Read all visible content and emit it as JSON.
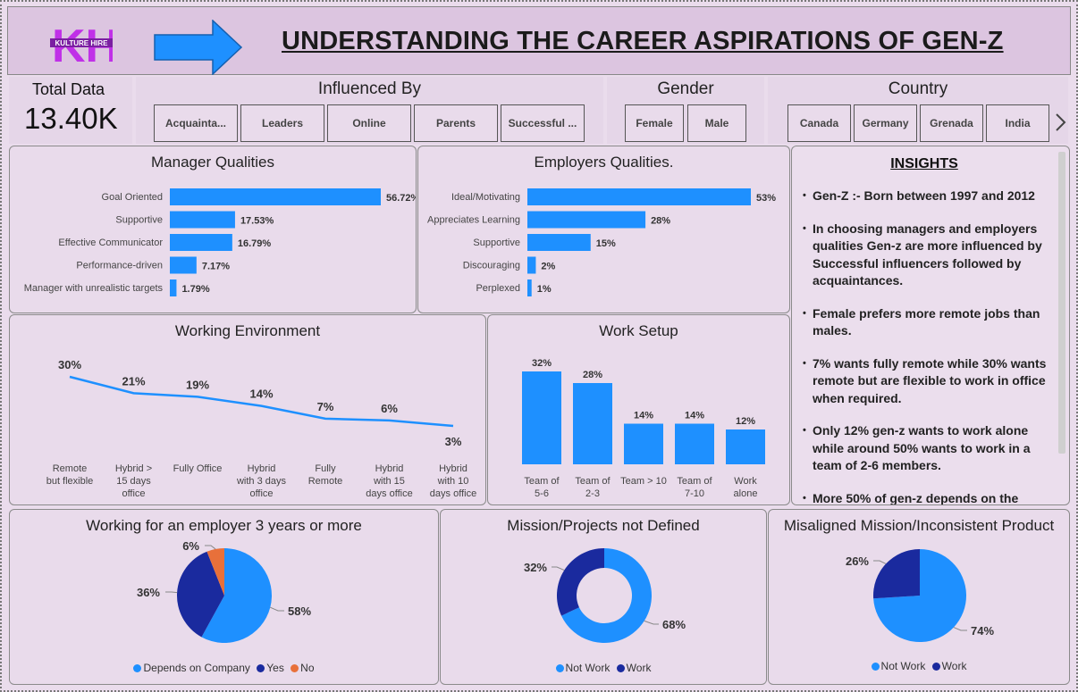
{
  "header": {
    "title": "UNDERSTANDING THE CAREER ASPIRATIONS OF GEN-Z",
    "logo_text": "KH",
    "logo_sub": "KULTURE HIRE"
  },
  "kpi": {
    "label": "Total Data",
    "value": "13.40K"
  },
  "slicers": {
    "influenced": {
      "title": "Influenced By",
      "options": [
        "Acquainta...",
        "Leaders",
        "Online",
        "Parents",
        "Successful ..."
      ]
    },
    "gender": {
      "title": "Gender",
      "options": [
        "Female",
        "Male"
      ]
    },
    "country": {
      "title": "Country",
      "options": [
        "Canada",
        "Germany",
        "Grenada",
        "India"
      ],
      "next_icon": "chevron-right-icon"
    }
  },
  "colors": {
    "bar": "#1e90ff",
    "dark": "#1a2a9e",
    "orange": "#e8703a",
    "panel": "#e9dbeb"
  },
  "chart_data": [
    {
      "type": "bar",
      "orientation": "horizontal",
      "title": "Manager Qualities",
      "categories": [
        "Goal Oriented",
        "Supportive",
        "Effective Communicator",
        "Performance-driven",
        "Manager with unrealistic targets"
      ],
      "values": [
        56.72,
        17.53,
        16.79,
        7.17,
        1.79
      ],
      "labels": [
        "56.72%",
        "17.53%",
        "16.79%",
        "7.17%",
        "1.79%"
      ]
    },
    {
      "type": "bar",
      "orientation": "horizontal",
      "title": "Employers Qualities.",
      "categories": [
        "Ideal/Motivating",
        "Appreciates Learning",
        "Supportive",
        "Discouraging",
        "Perplexed"
      ],
      "values": [
        53,
        28,
        15,
        2,
        1
      ],
      "labels": [
        "53%",
        "28%",
        "15%",
        "2%",
        "1%"
      ]
    },
    {
      "type": "line",
      "title": "Working Environment",
      "categories": [
        "Remote but flexible",
        "Hybrid > 15 days office",
        "Fully Office",
        "Hybrid with 3 days office",
        "Fully Remote",
        "Hybrid with 15 days office",
        "Hybrid with 10 days office"
      ],
      "category_lines": [
        [
          "Remote",
          "but flexible"
        ],
        [
          "Hybrid >",
          "15 days",
          "office"
        ],
        [
          "Fully Office"
        ],
        [
          "Hybrid",
          "with 3 days",
          "office"
        ],
        [
          "Fully",
          "Remote"
        ],
        [
          "Hybrid",
          "with 15",
          "days office"
        ],
        [
          "Hybrid",
          "with 10",
          "days office"
        ]
      ],
      "values": [
        30,
        21,
        19,
        14,
        7,
        6,
        3
      ],
      "labels": [
        "30%",
        "21%",
        "19%",
        "14%",
        "7%",
        "6%",
        "3%"
      ]
    },
    {
      "type": "bar",
      "title": "Work Setup",
      "categories": [
        "Team of 5-6",
        "Team of 2-3",
        "Team > 10",
        "Team of 7-10",
        "Work alone"
      ],
      "category_lines": [
        [
          "Team of",
          "5-6"
        ],
        [
          "Team of",
          "2-3"
        ],
        [
          "Team > 10"
        ],
        [
          "Team of",
          "7-10"
        ],
        [
          "Work",
          "alone"
        ]
      ],
      "values": [
        32,
        28,
        14,
        14,
        12
      ],
      "labels": [
        "32%",
        "28%",
        "14%",
        "14%",
        "12%"
      ]
    },
    {
      "type": "pie",
      "title": "Working for an employer 3 years or more",
      "slices": [
        {
          "name": "Depends on Company",
          "value": 58,
          "label": "58%",
          "color": "#1e90ff"
        },
        {
          "name": "Yes",
          "value": 36,
          "label": "36%",
          "color": "#1a2a9e"
        },
        {
          "name": "No",
          "value": 6,
          "label": "6%",
          "color": "#e8703a"
        }
      ]
    },
    {
      "type": "pie",
      "donut": true,
      "title": "Mission/Projects not Defined",
      "slices": [
        {
          "name": "Not Work",
          "value": 68,
          "label": "68%",
          "color": "#1e90ff"
        },
        {
          "name": "Work",
          "value": 32,
          "label": "32%",
          "color": "#1a2a9e"
        }
      ]
    },
    {
      "type": "pie",
      "title": "Misaligned Mission/Inconsistent Product",
      "slices": [
        {
          "name": "Not Work",
          "value": 74,
          "label": "74%",
          "color": "#1e90ff"
        },
        {
          "name": "Work",
          "value": 26,
          "label": "26%",
          "color": "#1a2a9e"
        }
      ]
    }
  ],
  "insights": {
    "title": "INSIGHTS",
    "items": [
      "Gen-Z :- Born between 1997 and 2012",
      "In choosing managers and employers qualities Gen-z are more influenced by Successful influencers followed by acquaintances.",
      "Female prefers more remote jobs than males.",
      "7% wants fully remote while 30% wants remote but are flexible to work in office when required.",
      "Only 12% gen-z wants to work alone while around 50% wants to work in a team of 2-6 members.",
      "More 50% of gen-z depends on the"
    ]
  }
}
